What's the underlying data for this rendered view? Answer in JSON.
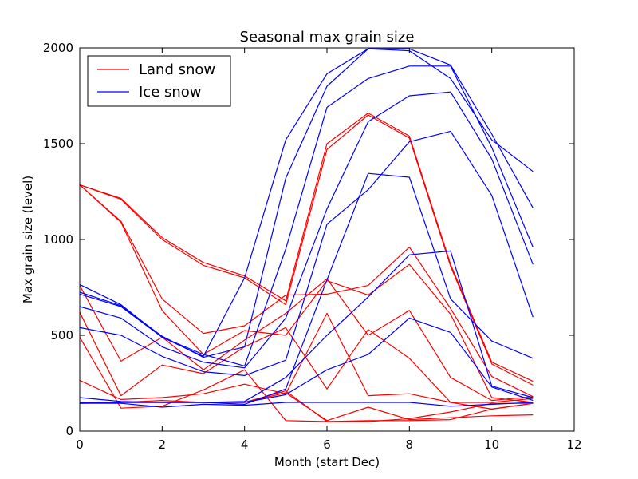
{
  "chart_data": {
    "type": "line",
    "title": "Seasonal max grain size",
    "xlabel": "Month (start Dec)",
    "ylabel": "Max grain size (level)",
    "xlim": [
      0,
      12
    ],
    "ylim": [
      0,
      2000
    ],
    "xticks": [
      0,
      2,
      4,
      6,
      8,
      10,
      12
    ],
    "yticks": [
      0,
      500,
      1000,
      1500,
      2000
    ],
    "grid": false,
    "legend_position": "top-left",
    "colors": {
      "Land snow": "#ff0000",
      "Ice snow": "#0000ff"
    },
    "legend": [
      {
        "label": "Land snow",
        "color": "#ff0000"
      },
      {
        "label": "Ice snow",
        "color": "#0000ff"
      }
    ],
    "x": [
      0,
      1,
      2,
      3,
      4,
      5,
      6,
      7,
      8,
      9,
      10,
      11
    ],
    "series": [
      {
        "group": "Land snow",
        "values": [
          1285,
          1215,
          1010,
          880,
          810,
          680,
          1500,
          1660,
          1540,
          870,
          360,
          260
        ]
      },
      {
        "group": "Land snow",
        "values": [
          1285,
          1210,
          1000,
          865,
          800,
          660,
          1470,
          1650,
          1530,
          860,
          350,
          240
        ]
      },
      {
        "group": "Land snow",
        "values": [
          1285,
          1095,
          690,
          510,
          550,
          710,
          715,
          760,
          960,
          640,
          285,
          180
        ]
      },
      {
        "group": "Land snow",
        "values": [
          1285,
          1090,
          630,
          400,
          525,
          500,
          785,
          710,
          870,
          610,
          175,
          150
        ]
      },
      {
        "group": "Land snow",
        "values": [
          760,
          365,
          490,
          320,
          475,
          615,
          795,
          500,
          630,
          280,
          160,
          180
        ]
      },
      {
        "group": "Land snow",
        "values": [
          620,
          185,
          345,
          300,
          440,
          540,
          220,
          530,
          380,
          150,
          150,
          170
        ]
      },
      {
        "group": "Land snow",
        "values": [
          490,
          120,
          130,
          215,
          320,
          55,
          50,
          50,
          65,
          100,
          145,
          145
        ]
      },
      {
        "group": "Land snow",
        "values": [
          265,
          165,
          175,
          195,
          245,
          195,
          615,
          185,
          195,
          150,
          115,
          145
        ]
      },
      {
        "group": "Land snow",
        "values": [
          145,
          150,
          160,
          150,
          150,
          200,
          55,
          125,
          60,
          70,
          80,
          85
        ]
      },
      {
        "group": "Land snow",
        "values": [
          150,
          150,
          150,
          150,
          150,
          210,
          50,
          55,
          55,
          60,
          115,
          145
        ]
      },
      {
        "group": "Ice snow",
        "values": [
          765,
          660,
          490,
          390,
          800,
          1520,
          1865,
          1995,
          1985,
          1840,
          1520,
          1355
        ]
      },
      {
        "group": "Ice snow",
        "values": [
          725,
          655,
          495,
          385,
          440,
          1320,
          1800,
          1995,
          1995,
          1910,
          1550,
          1165
        ]
      },
      {
        "group": "Ice snow",
        "values": [
          715,
          650,
          490,
          400,
          340,
          950,
          1690,
          1840,
          1905,
          1905,
          1480,
          960
        ]
      },
      {
        "group": "Ice snow",
        "values": [
          650,
          590,
          440,
          360,
          330,
          590,
          1160,
          1615,
          1750,
          1770,
          1420,
          870
        ]
      },
      {
        "group": "Ice snow",
        "values": [
          540,
          500,
          390,
          310,
          290,
          370,
          1080,
          1260,
          1510,
          1565,
          1230,
          595
        ]
      },
      {
        "group": "Ice snow",
        "values": [
          175,
          155,
          150,
          150,
          140,
          220,
          790,
          1345,
          1325,
          690,
          470,
          380
        ]
      },
      {
        "group": "Ice snow",
        "values": [
          150,
          150,
          150,
          150,
          155,
          280,
          500,
          700,
          920,
          940,
          235,
          175
        ]
      },
      {
        "group": "Ice snow",
        "values": [
          150,
          150,
          150,
          150,
          150,
          190,
          320,
          400,
          590,
          515,
          230,
          160
        ]
      },
      {
        "group": "Ice snow",
        "values": [
          145,
          145,
          125,
          140,
          135,
          150,
          150,
          150,
          150,
          130,
          140,
          150
        ]
      }
    ]
  }
}
